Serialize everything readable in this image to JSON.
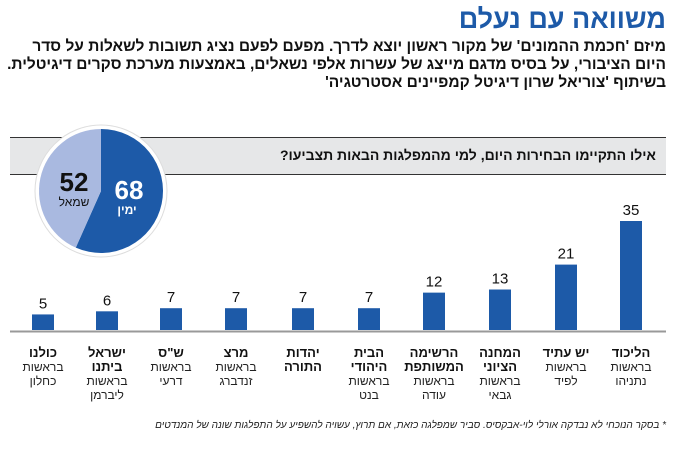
{
  "header": {
    "title": "משוואה עם נעלם",
    "subtitle": "מיזם 'חכמת ההמונים' של מקור ראשון יוצא לדרך. מפעם לפעם נציג תשובות לשאלות על סדר היום הציבורי, על בסיס מדגם מייצג של עשרות אלפי נשאלים, באמצעות מערכת סקרים דיגיטלית. בשיתוף 'צוריאל שרון דיגיטל קמפיינים אסטרטגיה'"
  },
  "chart_data": [
    {
      "type": "bar",
      "title": "אילו התקיימו הבחירות היום, למי מהמפלגות הבאות תצביעו?",
      "categories": [
        {
          "name": "הליכוד",
          "leader": "בראשות נתניהו"
        },
        {
          "name": "יש עתיד",
          "leader": "בראשות לפיד"
        },
        {
          "name": "המחנה הציוני",
          "leader": "בראשות גבאי"
        },
        {
          "name": "הרשימה המשותפת",
          "leader": "בראשות עודה"
        },
        {
          "name": "הבית היהודי",
          "leader": "בראשות בנט"
        },
        {
          "name": "יהדות התורה",
          "leader": ""
        },
        {
          "name": "מרצ",
          "leader": "בראשות זנדברג"
        },
        {
          "name": "ש\"ס",
          "leader": "בראשות דרעי"
        },
        {
          "name": "ישראל ביתנו",
          "leader": "בראשות ליברמן"
        },
        {
          "name": "כולנו",
          "leader": "בראשות כחלון"
        }
      ],
      "values": [
        35,
        21,
        13,
        12,
        7,
        7,
        7,
        7,
        6,
        5
      ],
      "ylim": [
        0,
        35
      ],
      "grid": false,
      "color": "#1d5aa8"
    },
    {
      "type": "pie",
      "slices": [
        {
          "label": "ימין",
          "value": 68,
          "color": "#1d5aa8"
        },
        {
          "label": "שמאל",
          "value": 52,
          "color": "#a9b9e0"
        }
      ]
    }
  ],
  "footnote": "* בסקר הנוכחי לא נבדקה אורלי לוי-אבקסיס. סביר שמפלגה כזאת, אם תרוץ, עשויה להשפיע על התפלגות שונה של המנדטים"
}
